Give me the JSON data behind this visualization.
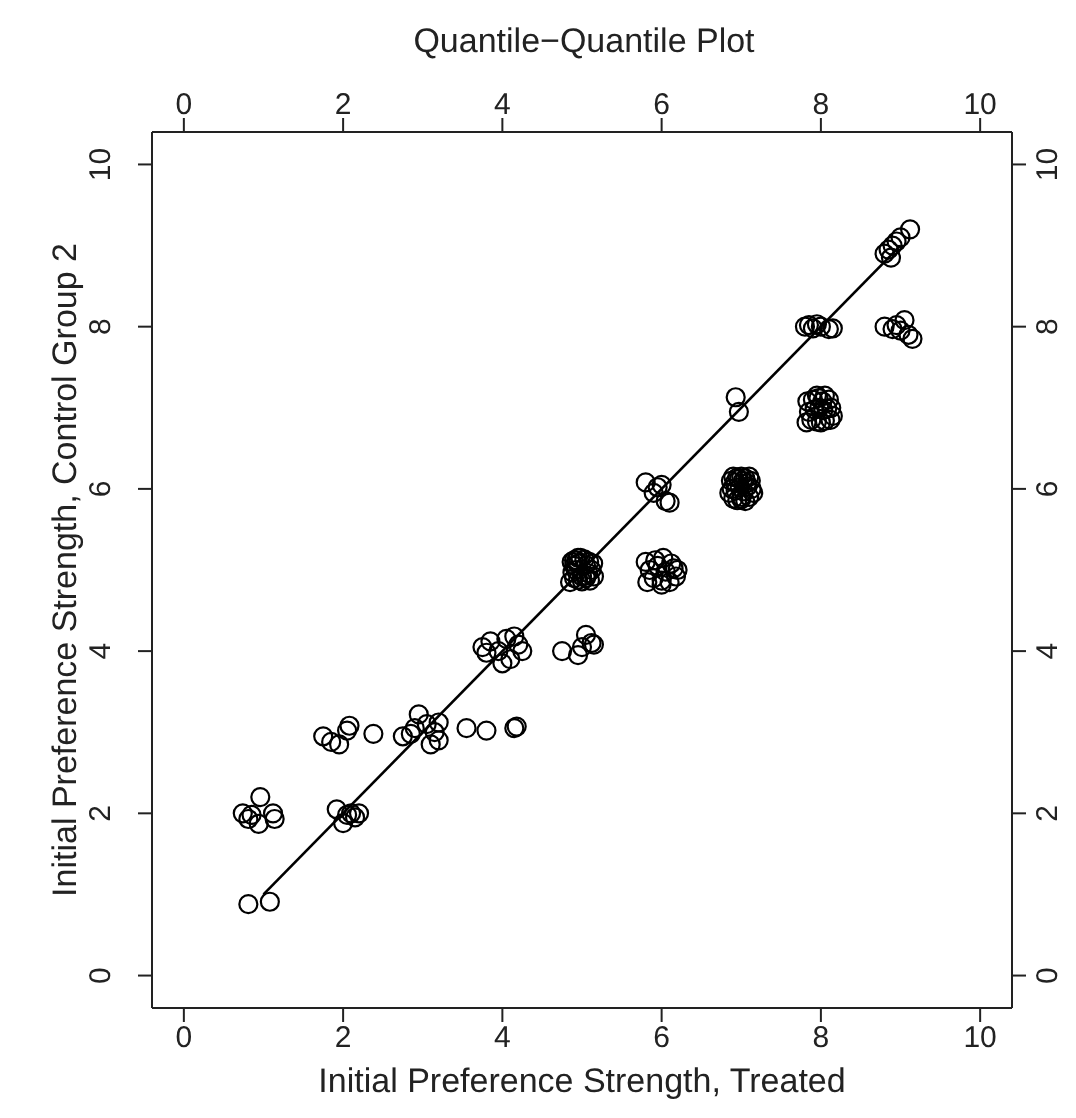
{
  "chart_data": {
    "type": "scatter",
    "title": "Quantile−Quantile Plot",
    "xlabel": "Initial Preference Strength, Treated",
    "ylabel": "Initial Preference Strength, Control Group 2",
    "xlim": [
      -0.4,
      10.4
    ],
    "ylim": [
      -0.4,
      10.4
    ],
    "x2lim": [
      -0.4,
      10.4
    ],
    "y2lim": [
      -0.4,
      10.4
    ],
    "xticks": [
      0,
      2,
      4,
      6,
      8,
      10
    ],
    "yticks": [
      0,
      2,
      4,
      6,
      8,
      10
    ],
    "x2ticks": [
      0,
      2,
      4,
      6,
      8,
      10
    ],
    "y2ticks": [
      0,
      2,
      4,
      6,
      8,
      10
    ],
    "series": [
      {
        "type": "scatter",
        "marker": "circle",
        "color": "#000000",
        "x": [
          0.81,
          1.08,
          0.74,
          0.81,
          0.96,
          0.94,
          1.12,
          1.14,
          0.85,
          1.92,
          2.0,
          2.1,
          2.2,
          2.15,
          2.05,
          1.75,
          1.85,
          1.95,
          2.05,
          2.08,
          2.38,
          2.75,
          2.85,
          2.95,
          3.05,
          3.15,
          3.2,
          3.1,
          3.2,
          2.9,
          3.55,
          3.8,
          4.15,
          4.18,
          3.75,
          3.85,
          3.95,
          4.05,
          4.1,
          4.2,
          4.25,
          3.8,
          4.0,
          4.15,
          4.75,
          4.95,
          5.0,
          5.05,
          5.12,
          5.15,
          4.85,
          4.9,
          4.95,
          5.0,
          5.05,
          5.1,
          5.15,
          4.88,
          4.92,
          5.08,
          5.12,
          4.9,
          4.95,
          5.05,
          4.87,
          4.93,
          4.98,
          5.03,
          5.09,
          5.14,
          4.95,
          5.05,
          4.9,
          5.0,
          5.82,
          5.9,
          6.0,
          6.1,
          6.18,
          5.85,
          5.95,
          6.05,
          6.15,
          5.8,
          5.92,
          6.02,
          6.12,
          6.2,
          6.0,
          5.8,
          5.9,
          6.0,
          6.05,
          6.1,
          5.95,
          6.93,
          6.97,
          6.85,
          6.9,
          6.95,
          7.0,
          7.05,
          7.1,
          7.15,
          6.88,
          6.93,
          6.98,
          7.03,
          7.08,
          7.13,
          6.87,
          6.92,
          6.97,
          7.02,
          7.07,
          7.12,
          6.9,
          6.95,
          7.0,
          7.05,
          7.1,
          7.0,
          7.82,
          7.88,
          7.95,
          8.0,
          8.05,
          8.12,
          8.15,
          7.85,
          7.92,
          7.98,
          8.03,
          8.08,
          8.13,
          7.83,
          7.9,
          7.97,
          8.02,
          8.1,
          7.95,
          8.05,
          7.8,
          7.85,
          7.9,
          8.0,
          8.1,
          8.15,
          7.95,
          8.8,
          8.9,
          9.0,
          9.05,
          9.1,
          9.15,
          8.95,
          8.8,
          8.85,
          8.9,
          8.95,
          9.0,
          9.12,
          8.88
        ],
        "values": [
          0.88,
          0.91,
          2.0,
          1.93,
          2.2,
          1.87,
          2.0,
          1.93,
          1.98,
          2.05,
          1.88,
          2.0,
          2.0,
          1.95,
          1.98,
          2.95,
          2.88,
          2.85,
          3.02,
          3.08,
          2.98,
          2.95,
          2.98,
          3.22,
          3.1,
          3.0,
          2.9,
          2.85,
          3.12,
          3.05,
          3.05,
          3.02,
          3.05,
          3.07,
          4.05,
          4.12,
          4.0,
          4.15,
          3.9,
          4.08,
          4.0,
          3.98,
          3.85,
          4.18,
          4.0,
          3.95,
          4.05,
          4.2,
          4.1,
          4.08,
          4.85,
          4.9,
          4.88,
          4.86,
          4.9,
          4.87,
          4.92,
          4.97,
          5.0,
          4.96,
          5.0,
          5.05,
          5.08,
          5.06,
          5.1,
          5.12,
          5.15,
          5.13,
          5.1,
          5.08,
          5.15,
          4.93,
          5.12,
          4.92,
          4.85,
          4.9,
          4.87,
          4.85,
          4.92,
          5.0,
          5.05,
          4.98,
          5.02,
          5.1,
          5.12,
          5.15,
          5.08,
          5.0,
          4.82,
          6.08,
          5.95,
          6.05,
          5.85,
          5.83,
          6.02,
          7.13,
          6.95,
          5.95,
          5.88,
          5.86,
          5.87,
          5.85,
          5.9,
          5.95,
          6.0,
          5.98,
          6.02,
          5.97,
          6.03,
          6.0,
          6.1,
          6.08,
          6.12,
          6.1,
          6.07,
          6.1,
          6.15,
          6.14,
          6.15,
          6.13,
          6.15,
          5.9,
          6.82,
          6.85,
          6.83,
          6.82,
          6.84,
          6.85,
          6.9,
          6.95,
          6.98,
          7.0,
          6.97,
          6.99,
          7.0,
          7.08,
          7.1,
          7.12,
          7.08,
          7.1,
          7.15,
          7.15,
          8.0,
          8.02,
          7.98,
          8.0,
          7.97,
          7.98,
          8.03,
          8.0,
          7.97,
          7.95,
          8.08,
          7.9,
          7.85,
          8.02,
          8.9,
          8.95,
          9.0,
          9.05,
          9.1,
          9.2,
          8.85
        ]
      },
      {
        "type": "line",
        "marker": "none",
        "color": "#000000",
        "x": [
          1,
          9
        ],
        "values": [
          1,
          9
        ]
      }
    ]
  }
}
